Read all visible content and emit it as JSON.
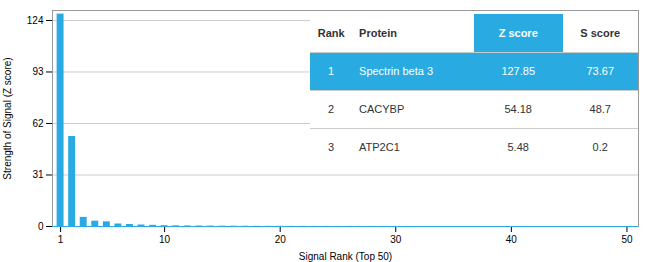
{
  "chart_data": {
    "type": "bar",
    "x": [
      1,
      2,
      3,
      4,
      5,
      6,
      7,
      8,
      9,
      10,
      11,
      12,
      13,
      14,
      15,
      16,
      17,
      18,
      19,
      20,
      21,
      22,
      23,
      24,
      25,
      26,
      27,
      28,
      29,
      30,
      31,
      32,
      33,
      34,
      35,
      36,
      37,
      38,
      39,
      40,
      41,
      42,
      43,
      44,
      45,
      46,
      47,
      48,
      49,
      50
    ],
    "values": [
      127.85,
      54.18,
      5.48,
      3.2,
      2.8,
      1.5,
      1.2,
      0.9,
      0.7,
      0.5,
      0.4,
      0.35,
      0.3,
      0.25,
      0.2,
      0.18,
      0.15,
      0.13,
      0.11,
      0.1,
      0.09,
      0.08,
      0.07,
      0.065,
      0.06,
      0.055,
      0.05,
      0.045,
      0.04,
      0.038,
      0.036,
      0.034,
      0.032,
      0.03,
      0.028,
      0.026,
      0.024,
      0.022,
      0.02,
      0.018,
      0.016,
      0.015,
      0.014,
      0.013,
      0.012,
      0.011,
      0.01,
      0.009,
      0.008,
      0.007
    ],
    "color": "#29abe2",
    "xlim": [
      0.3,
      51
    ],
    "xticks": [
      1,
      10,
      20,
      30,
      40,
      50
    ],
    "ylim": [
      0,
      130
    ],
    "yticks": [
      0,
      31,
      62,
      93,
      124
    ],
    "xlabel": "Signal Rank (Top 50)",
    "ylabel": "Strength of Signal (Z score)",
    "grid": true,
    "table_header": [
      "Rank",
      "Protein",
      "Z score",
      "S score"
    ],
    "table_rows": [
      [
        "1",
        "Spectrin beta 3",
        "127.85",
        "73.67"
      ],
      [
        "2",
        "CACYBP",
        "54.18",
        "48.7"
      ],
      [
        "3",
        "ATP2C1",
        "5.48",
        "0.2"
      ]
    ]
  }
}
